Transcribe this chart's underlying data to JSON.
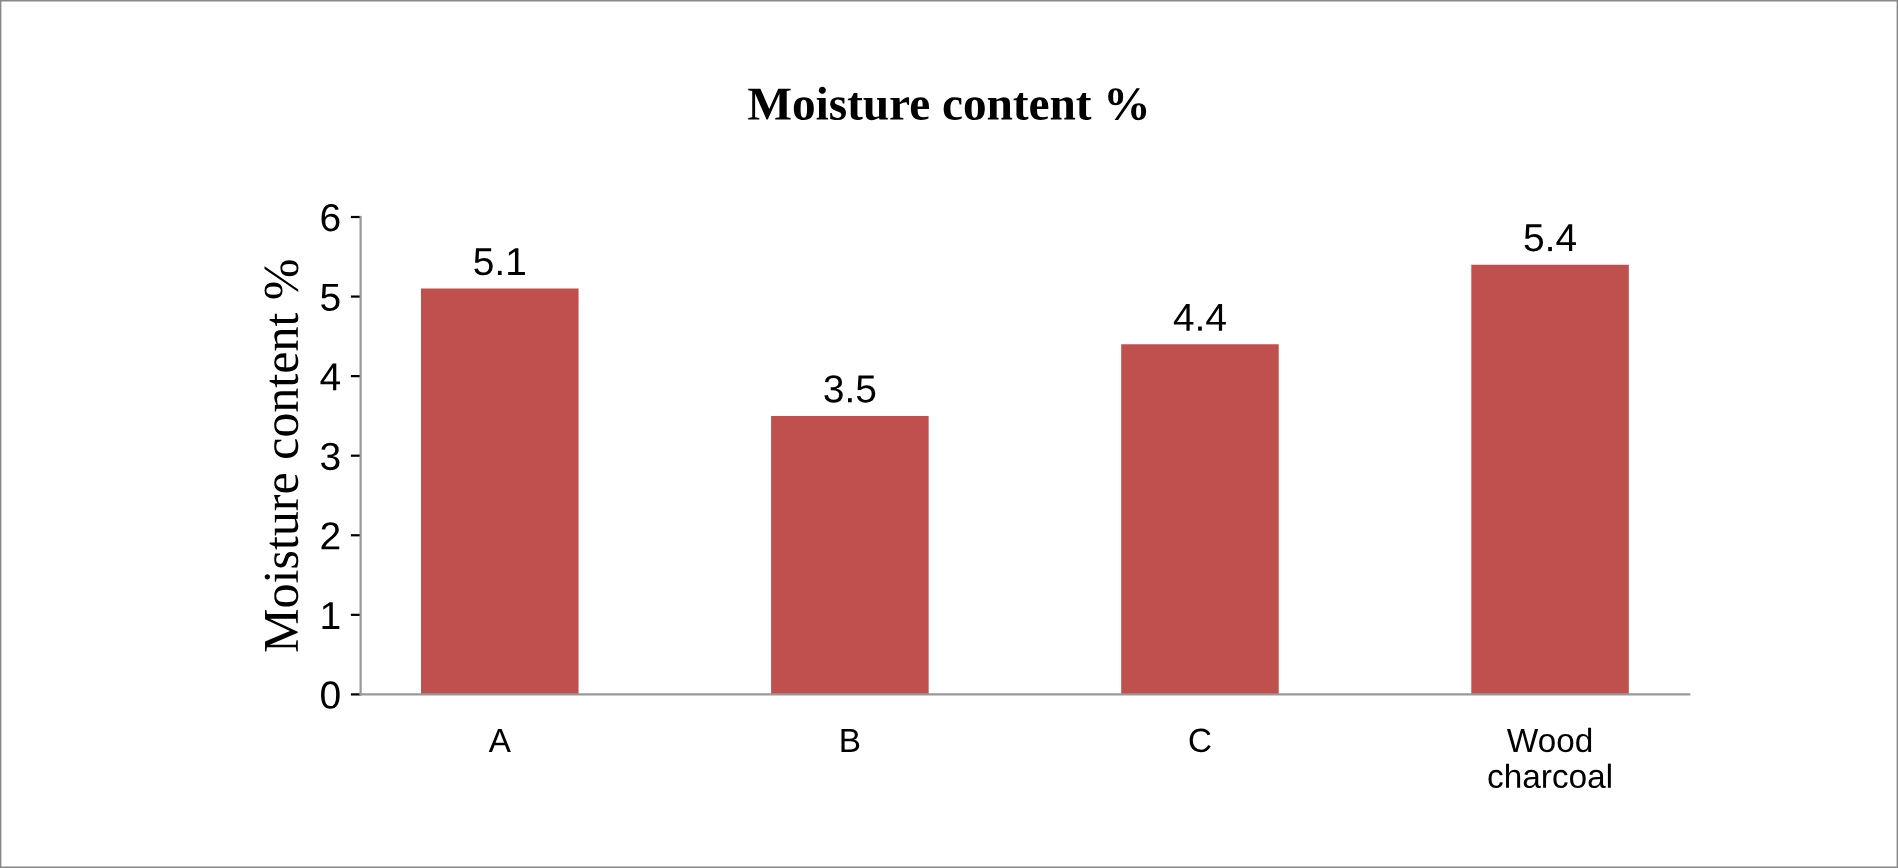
{
  "chart_data": {
    "type": "bar",
    "title": "Moisture content %",
    "ylabel": "Moisture content %",
    "categories": [
      "A",
      "B",
      "C",
      "Wood\ncharcoal"
    ],
    "values": [
      5.1,
      3.5,
      4.4,
      5.4
    ],
    "color": "#c0504d",
    "ylim": [
      0,
      6
    ],
    "yticks": [
      0,
      1,
      2,
      3,
      4,
      5,
      6
    ],
    "grid": false,
    "data_labels": true
  }
}
